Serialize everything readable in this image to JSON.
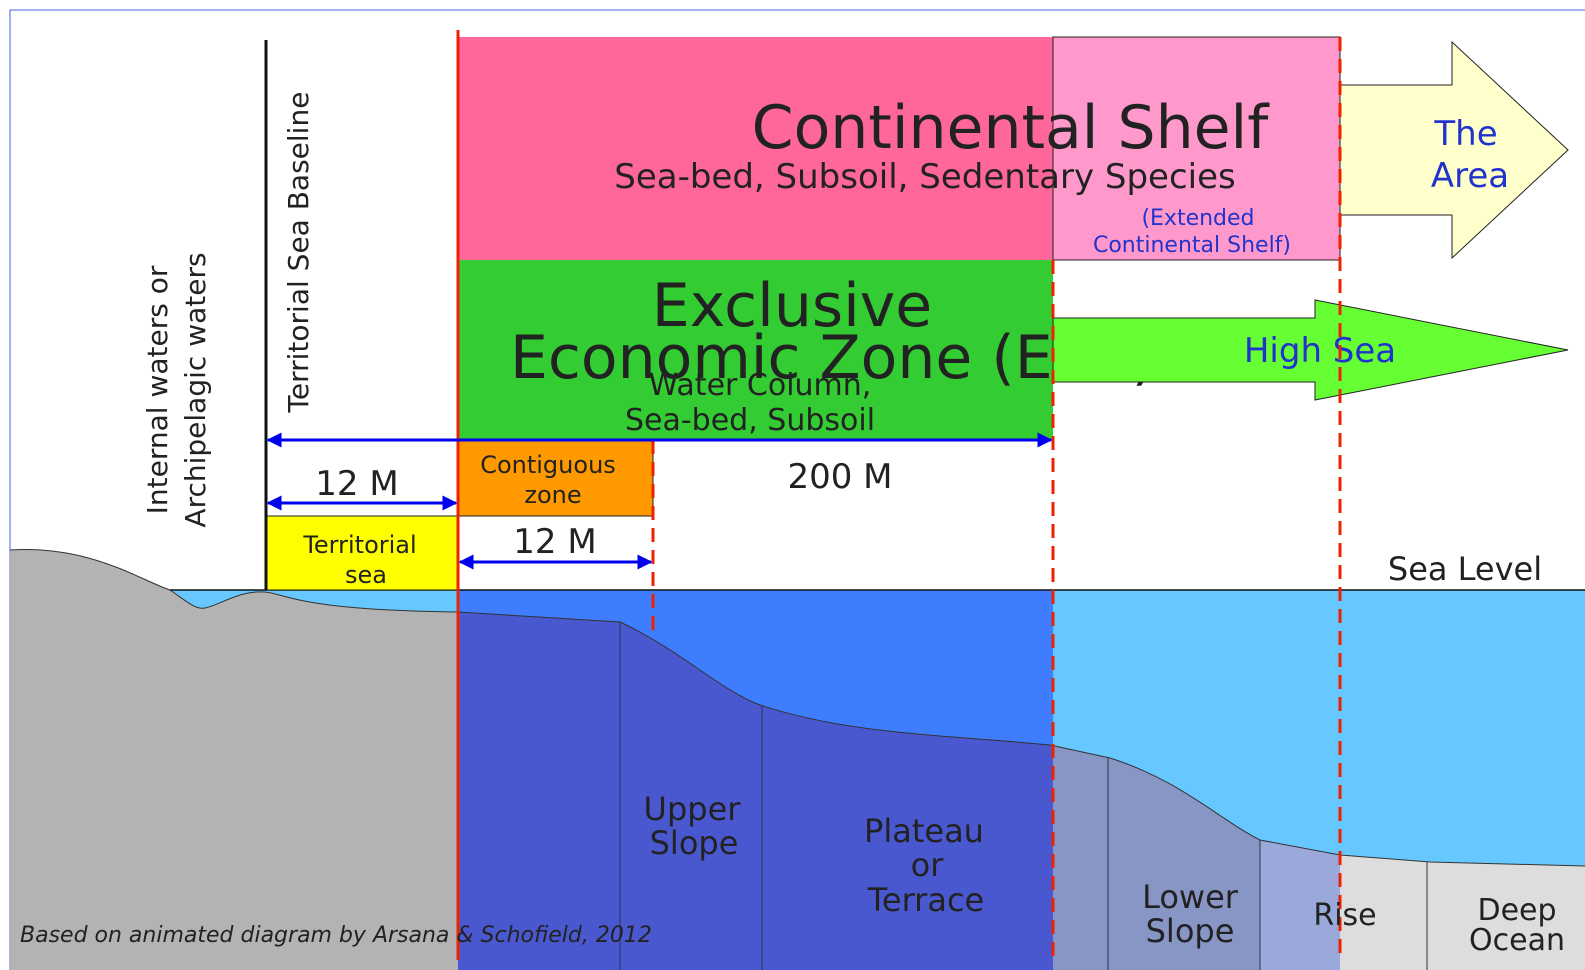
{
  "continental_shelf": {
    "title": "Continental Shelf",
    "subtitle": "Sea-bed, Subsoil, Sedentary Species"
  },
  "extended_shelf": [
    "(Extended",
    "Continental Shelf)"
  ],
  "the_area": [
    "The",
    "Area"
  ],
  "eez": {
    "title": [
      "Exclusive",
      "Economic Zone (EEZ)"
    ],
    "subtitle": [
      "Water Column,",
      "Sea-bed, Subsoil"
    ]
  },
  "high_sea": "High Sea",
  "distances": {
    "eez": "200 M",
    "territorial": "12 M",
    "contiguous": "12 M"
  },
  "contiguous_zone": [
    "Contiguous",
    "zone"
  ],
  "territorial_sea": [
    "Territorial",
    "sea"
  ],
  "baseline": "Territorial Sea Baseline",
  "internal_waters": [
    "Internal waters or",
    "Archipelagic waters"
  ],
  "sea_level": "Sea Level",
  "seabed": {
    "upper_slope": [
      "Upper",
      "Slope"
    ],
    "plateau": [
      "Plateau",
      "or",
      "Terrace"
    ],
    "lower_slope": [
      "Lower",
      "Slope"
    ],
    "rise": "Rise",
    "deep_ocean": [
      "Deep",
      "Ocean"
    ]
  },
  "credit": "Based on animated diagram by Arsana & Schofield, 2012"
}
